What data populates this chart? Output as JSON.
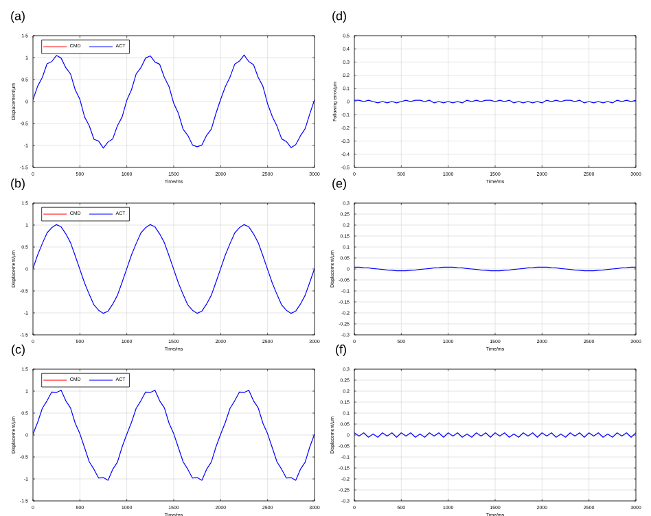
{
  "chart_data": [
    {
      "type": "line",
      "title": "(a)",
      "xlabel": "Time/ms",
      "ylabel": "Displacement/μm",
      "xlim": [
        0,
        3000
      ],
      "xticks": [
        0,
        500,
        1000,
        1500,
        2000,
        2500,
        3000
      ],
      "ylim": [
        -1.5,
        1.5
      ],
      "yticks": [
        -1.5,
        -1,
        -0.5,
        0,
        0.5,
        1,
        1.5
      ],
      "grid": true,
      "legend": "top left",
      "x": [
        0,
        50,
        100,
        150,
        200,
        250,
        300,
        350,
        400,
        450,
        500,
        550,
        600,
        650,
        700,
        750,
        800,
        850,
        900,
        950,
        1000,
        1050,
        1100,
        1150,
        1200,
        1250,
        1300,
        1350,
        1400,
        1450,
        1500,
        1550,
        1600,
        1650,
        1700,
        1750,
        1800,
        1850,
        1900,
        1950,
        2000,
        2050,
        2100,
        2150,
        2200,
        2250,
        2300,
        2350,
        2400,
        2450,
        2500,
        2550,
        2600,
        2650,
        2700,
        2750,
        2800,
        2850,
        2900,
        2950,
        3000
      ],
      "series": [
        {
          "name": "CMD",
          "color": "#ff0000",
          "values": [
            null,
            null,
            null,
            null,
            null,
            null,
            null,
            null,
            null,
            null,
            null,
            null,
            null,
            null,
            null,
            null,
            null,
            null,
            null,
            null,
            null,
            null,
            null,
            null,
            null,
            null,
            null,
            null,
            null,
            null,
            null,
            null,
            null,
            null,
            null,
            null,
            null,
            null,
            null,
            null,
            null,
            null,
            null,
            null,
            null,
            null,
            null,
            null,
            null,
            null,
            null,
            null,
            null,
            null,
            null,
            null,
            null,
            null,
            null,
            null,
            null
          ]
        },
        {
          "name": "ACT",
          "color": "#0000ff",
          "values": [
            0.04,
            0.35,
            0.55,
            0.86,
            0.91,
            1.05,
            0.99,
            0.77,
            0.63,
            0.27,
            0.05,
            -0.35,
            -0.55,
            -0.86,
            -0.9,
            -1.06,
            -0.92,
            -0.85,
            -0.55,
            -0.35,
            0.03,
            0.27,
            0.63,
            0.77,
            0.99,
            1.04,
            0.9,
            0.85,
            0.55,
            0.34,
            -0.04,
            -0.27,
            -0.63,
            -0.77,
            -0.99,
            -1.03,
            -0.99,
            -0.77,
            -0.63,
            -0.27,
            0.05,
            0.34,
            0.56,
            0.85,
            0.92,
            1.06,
            0.91,
            0.84,
            0.55,
            0.35,
            -0.05,
            -0.34,
            -0.56,
            -0.85,
            -0.91,
            -1.05,
            -0.98,
            -0.78,
            -0.62,
            -0.28,
            0.04
          ]
        }
      ]
    },
    {
      "type": "line",
      "title": "(b)",
      "xlabel": "Time/ms",
      "ylabel": "Displacement/μm",
      "xlim": [
        0,
        3000
      ],
      "xticks": [
        0,
        500,
        1000,
        1500,
        2000,
        2500,
        3000
      ],
      "ylim": [
        -1.5,
        1.5
      ],
      "yticks": [
        -1.5,
        -1,
        -0.5,
        0,
        0.5,
        1,
        1.5
      ],
      "grid": true,
      "legend": "top left",
      "x": [
        0,
        50,
        100,
        150,
        200,
        250,
        300,
        350,
        400,
        450,
        500,
        550,
        600,
        650,
        700,
        750,
        800,
        850,
        900,
        950,
        1000,
        1050,
        1100,
        1150,
        1200,
        1250,
        1300,
        1350,
        1400,
        1450,
        1500,
        1550,
        1600,
        1650,
        1700,
        1750,
        1800,
        1850,
        1900,
        1950,
        2000,
        2050,
        2100,
        2150,
        2200,
        2250,
        2300,
        2350,
        2400,
        2450,
        2500,
        2550,
        2600,
        2650,
        2700,
        2750,
        2800,
        2850,
        2900,
        2950,
        3000
      ],
      "series": [
        {
          "name": "CMD",
          "color": "#ff0000",
          "values": [
            null,
            null,
            null,
            null,
            null,
            null,
            null,
            null,
            null,
            null,
            null,
            null,
            null,
            null,
            null,
            null,
            null,
            null,
            null,
            null,
            null,
            null,
            null,
            null,
            null,
            null,
            null,
            null,
            null,
            null,
            null,
            null,
            null,
            null,
            null,
            null,
            null,
            null,
            null,
            null,
            null,
            null,
            null,
            null,
            null,
            null,
            null,
            null,
            null,
            null,
            null,
            null,
            null,
            null,
            null,
            null,
            null,
            null,
            null,
            null,
            null
          ]
        },
        {
          "name": "ACT",
          "color": "#0000ff",
          "values": [
            0.01,
            0.32,
            0.58,
            0.82,
            0.94,
            1.01,
            0.96,
            0.8,
            0.6,
            0.3,
            -0.01,
            -0.32,
            -0.58,
            -0.82,
            -0.94,
            -1.01,
            -0.96,
            -0.8,
            -0.6,
            -0.3,
            0.01,
            0.32,
            0.58,
            0.82,
            0.94,
            1.01,
            0.96,
            0.8,
            0.6,
            0.3,
            -0.01,
            -0.32,
            -0.58,
            -0.82,
            -0.94,
            -1.01,
            -0.96,
            -0.8,
            -0.6,
            -0.3,
            0.01,
            0.32,
            0.58,
            0.82,
            0.94,
            1.01,
            0.96,
            0.8,
            0.6,
            0.3,
            -0.01,
            -0.32,
            -0.58,
            -0.82,
            -0.94,
            -1.01,
            -0.96,
            -0.8,
            -0.6,
            -0.3,
            0.01
          ]
        }
      ]
    },
    {
      "type": "line",
      "title": "(c)",
      "xlabel": "Time/ms",
      "ylabel": "Displacement/μm",
      "xlim": [
        0,
        3000
      ],
      "xticks": [
        0,
        500,
        1000,
        1500,
        2000,
        2500,
        3000
      ],
      "ylim": [
        -1.5,
        1.5
      ],
      "yticks": [
        -1.5,
        -1,
        -0.5,
        0,
        0.5,
        1,
        1.5
      ],
      "grid": true,
      "legend": "top left",
      "x": [
        0,
        50,
        100,
        150,
        200,
        250,
        300,
        350,
        400,
        450,
        500,
        550,
        600,
        650,
        700,
        750,
        800,
        850,
        900,
        950,
        1000,
        1050,
        1100,
        1150,
        1200,
        1250,
        1300,
        1350,
        1400,
        1450,
        1500,
        1550,
        1600,
        1650,
        1700,
        1750,
        1800,
        1850,
        1900,
        1950,
        2000,
        2050,
        2100,
        2150,
        2200,
        2250,
        2300,
        2350,
        2400,
        2450,
        2500,
        2550,
        2600,
        2650,
        2700,
        2750,
        2800,
        2850,
        2900,
        2950,
        3000
      ],
      "series": [
        {
          "name": "CMD",
          "color": "#ff0000",
          "values": [
            null,
            null,
            null,
            null,
            null,
            null,
            null,
            null,
            null,
            null,
            null,
            null,
            null,
            null,
            null,
            null,
            null,
            null,
            null,
            null,
            null,
            null,
            null,
            null,
            null,
            null,
            null,
            null,
            null,
            null,
            null,
            null,
            null,
            null,
            null,
            null,
            null,
            null,
            null,
            null,
            null,
            null,
            null,
            null,
            null,
            null,
            null,
            null,
            null,
            null,
            null,
            null,
            null,
            null,
            null,
            null,
            null,
            null,
            null,
            null,
            null
          ]
        },
        {
          "name": "ACT",
          "color": "#0000ff",
          "values": [
            0.02,
            0.29,
            0.61,
            0.78,
            0.98,
            0.97,
            1.02,
            0.78,
            0.62,
            0.27,
            0.03,
            -0.29,
            -0.61,
            -0.78,
            -0.98,
            -0.97,
            -1.03,
            -0.78,
            -0.62,
            -0.27,
            0.02,
            0.29,
            0.61,
            0.78,
            0.98,
            0.97,
            1.02,
            0.78,
            0.62,
            0.27,
            0.03,
            -0.29,
            -0.61,
            -0.78,
            -0.98,
            -0.97,
            -1.03,
            -0.78,
            -0.62,
            -0.27,
            0.02,
            0.29,
            0.61,
            0.78,
            0.98,
            0.97,
            1.02,
            0.78,
            0.62,
            0.27,
            0.03,
            -0.29,
            -0.61,
            -0.78,
            -0.98,
            -0.97,
            -1.03,
            -0.78,
            -0.62,
            -0.27,
            0.02
          ]
        }
      ]
    },
    {
      "type": "line",
      "title": "(d)",
      "xlabel": "Time/ms",
      "ylabel": "Following error/μm",
      "xlim": [
        0,
        3000
      ],
      "xticks": [
        0,
        500,
        1000,
        1500,
        2000,
        2500,
        3000
      ],
      "ylim": [
        -0.5,
        0.5
      ],
      "yticks": [
        -0.5,
        -0.4,
        -0.3,
        -0.2,
        -0.1,
        0,
        0.1,
        0.2,
        0.3,
        0.4,
        0.5
      ],
      "grid": true,
      "x": [
        0,
        50,
        100,
        150,
        200,
        250,
        300,
        350,
        400,
        450,
        500,
        550,
        600,
        650,
        700,
        750,
        800,
        850,
        900,
        950,
        1000,
        1050,
        1100,
        1150,
        1200,
        1250,
        1300,
        1350,
        1400,
        1450,
        1500,
        1550,
        1600,
        1650,
        1700,
        1750,
        1800,
        1850,
        1900,
        1950,
        2000,
        2050,
        2100,
        2150,
        2200,
        2250,
        2300,
        2350,
        2400,
        2450,
        2500,
        2550,
        2600,
        2650,
        2700,
        2750,
        2800,
        2850,
        2900,
        2950,
        3000
      ],
      "series": [
        {
          "color": "#0000ff",
          "values": [
            0.01,
            0.01,
            0,
            0.01,
            0,
            -0.01,
            0,
            -0.01,
            0,
            -0.01,
            0,
            0.01,
            0,
            0.01,
            0.01,
            0,
            0.01,
            -0.01,
            0,
            -0.01,
            0,
            -0.01,
            0,
            -0.01,
            0.01,
            0,
            0.01,
            0,
            0.01,
            0.01,
            0,
            0.01,
            0,
            0.01,
            -0.01,
            0,
            -0.01,
            0,
            -0.01,
            0,
            -0.01,
            0.01,
            0,
            0.01,
            0,
            0.01,
            0.01,
            0,
            0.01,
            -0.01,
            0,
            -0.01,
            0,
            -0.01,
            0,
            -0.01,
            0.01,
            0,
            0.01,
            0,
            0.01
          ]
        }
      ]
    },
    {
      "type": "line",
      "title": "(e)",
      "xlabel": "Time/ms",
      "ylabel": "Displacement/μm",
      "xlim": [
        0,
        3000
      ],
      "xticks": [
        0,
        500,
        1000,
        1500,
        2000,
        2500,
        3000
      ],
      "ylim": [
        -0.3,
        0.3
      ],
      "yticks": [
        -0.3,
        -0.25,
        -0.2,
        -0.15,
        -0.1,
        -0.05,
        0,
        0.05,
        0.1,
        0.15,
        0.2,
        0.25,
        0.3
      ],
      "grid": true,
      "x": [
        0,
        50,
        100,
        150,
        200,
        250,
        300,
        350,
        400,
        450,
        500,
        550,
        600,
        650,
        700,
        750,
        800,
        850,
        900,
        950,
        1000,
        1050,
        1100,
        1150,
        1200,
        1250,
        1300,
        1350,
        1400,
        1450,
        1500,
        1550,
        1600,
        1650,
        1700,
        1750,
        1800,
        1850,
        1900,
        1950,
        2000,
        2050,
        2100,
        2150,
        2200,
        2250,
        2300,
        2350,
        2400,
        2450,
        2500,
        2550,
        2600,
        2650,
        2700,
        2750,
        2800,
        2850,
        2900,
        2950,
        3000
      ],
      "series": [
        {
          "color": "#0000ff",
          "values": [
            0.008,
            0.008,
            0.006,
            0.005,
            0.002,
            0,
            -0.002,
            -0.005,
            -0.006,
            -0.008,
            -0.008,
            -0.008,
            -0.006,
            -0.005,
            -0.002,
            0,
            0.002,
            0.005,
            0.006,
            0.008,
            0.008,
            0.008,
            0.006,
            0.005,
            0.002,
            0,
            -0.002,
            -0.005,
            -0.006,
            -0.008,
            -0.008,
            -0.008,
            -0.006,
            -0.005,
            -0.002,
            0,
            0.002,
            0.005,
            0.006,
            0.008,
            0.008,
            0.008,
            0.006,
            0.005,
            0.002,
            0,
            -0.002,
            -0.005,
            -0.006,
            -0.008,
            -0.008,
            -0.008,
            -0.006,
            -0.005,
            -0.002,
            0,
            0.002,
            0.005,
            0.006,
            0.008,
            0.008
          ]
        }
      ]
    },
    {
      "type": "line",
      "title": "(f)",
      "xlabel": "Time/ms",
      "ylabel": "Displacement/μm",
      "xlim": [
        0,
        3000
      ],
      "xticks": [
        0,
        500,
        1000,
        1500,
        2000,
        2500,
        3000
      ],
      "ylim": [
        -0.3,
        0.3
      ],
      "yticks": [
        -0.3,
        -0.25,
        -0.2,
        -0.15,
        -0.1,
        -0.05,
        0,
        0.05,
        0.1,
        0.15,
        0.2,
        0.25,
        0.3
      ],
      "grid": true,
      "x": [
        0,
        50,
        100,
        150,
        200,
        250,
        300,
        350,
        400,
        450,
        500,
        550,
        600,
        650,
        700,
        750,
        800,
        850,
        900,
        950,
        1000,
        1050,
        1100,
        1150,
        1200,
        1250,
        1300,
        1350,
        1400,
        1450,
        1500,
        1550,
        1600,
        1650,
        1700,
        1750,
        1800,
        1850,
        1900,
        1950,
        2000,
        2050,
        2100,
        2150,
        2200,
        2250,
        2300,
        2350,
        2400,
        2450,
        2500,
        2550,
        2600,
        2650,
        2700,
        2750,
        2800,
        2850,
        2900,
        2950,
        3000
      ],
      "series": [
        {
          "color": "#0000ff",
          "values": [
            0.01,
            -0.005,
            0.01,
            -0.01,
            0.005,
            -0.01,
            0.01,
            -0.005,
            0.01,
            -0.01,
            0.01,
            -0.005,
            0.01,
            -0.01,
            0.005,
            -0.01,
            0.01,
            -0.005,
            0.01,
            -0.01,
            0.01,
            -0.005,
            0.01,
            -0.01,
            0.005,
            -0.01,
            0.01,
            -0.005,
            0.01,
            -0.01,
            0.01,
            -0.005,
            0.01,
            -0.01,
            0.005,
            -0.01,
            0.01,
            -0.005,
            0.01,
            -0.01,
            0.01,
            -0.005,
            0.01,
            -0.01,
            0.005,
            -0.01,
            0.01,
            -0.005,
            0.01,
            -0.01,
            0.01,
            -0.005,
            0.01,
            -0.01,
            0.005,
            -0.01,
            0.01,
            -0.005,
            0.01,
            -0.01,
            0.01
          ]
        }
      ]
    }
  ]
}
